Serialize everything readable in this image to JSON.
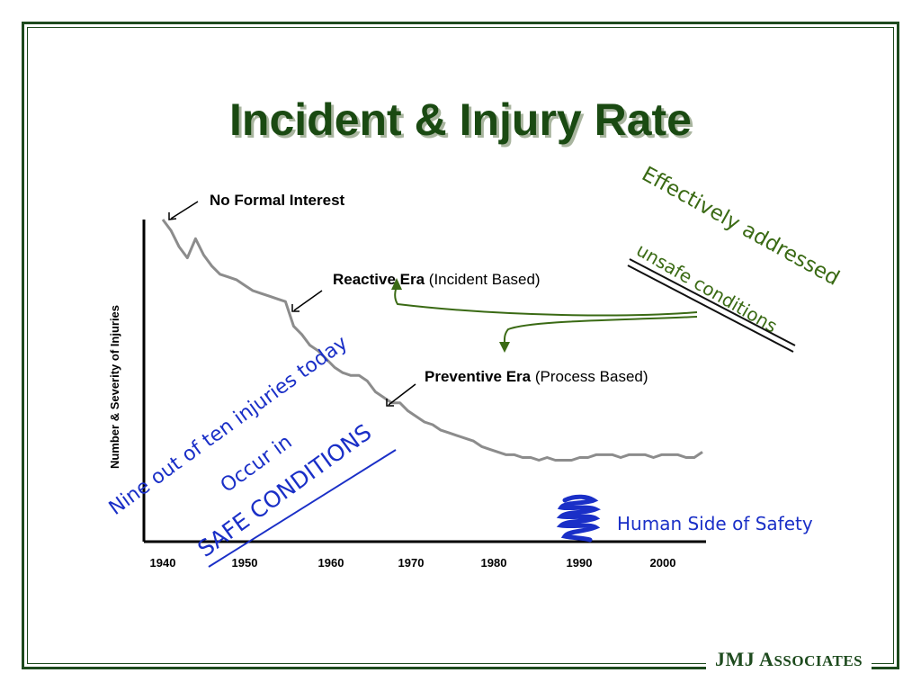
{
  "slide": {
    "title": "Incident & Injury Rate",
    "logo_main": "JMJ A",
    "logo_small": "SSOCIATES",
    "colors": {
      "title": "#1a4a12",
      "frame": "#1d4a1d",
      "curve": "#8c8c8c",
      "hand_blue": "#1a2fc7",
      "hand_green": "#3a6a14"
    }
  },
  "annotations": {
    "no_formal": "No Formal Interest",
    "reactive_bold": "Reactive Era",
    "reactive_rest": " (Incident Based)",
    "preventive_bold": "Preventive Era",
    "preventive_rest": " (Process Based)",
    "green_line1": "Effectively addressed",
    "green_line2": "unsafe conditions",
    "blue_line1": "Nine out of ten injuries today",
    "blue_line2": "Occur in",
    "blue_line3": "SAFE CONDITIONS",
    "human_side": "Human Side of Safety"
  },
  "chart_data": {
    "type": "line",
    "title": "",
    "xlabel": "",
    "ylabel": "Number & Severity of Injuries",
    "xticks": [
      "1940",
      "1950",
      "1960",
      "1970",
      "1980",
      "1990",
      "2000"
    ],
    "xlim": [
      1940,
      2006
    ],
    "ylim": [
      0,
      100
    ],
    "grid": false,
    "series": [
      {
        "x": [
          1940,
          1941,
          1942,
          1943,
          1944,
          1945,
          1946,
          1947,
          1948,
          1949,
          1950,
          1951,
          1952,
          1953,
          1954,
          1955,
          1956,
          1957,
          1958,
          1959,
          1960,
          1961,
          1962,
          1963,
          1964,
          1965,
          1966,
          1967,
          1968,
          1969,
          1970,
          1971,
          1972,
          1973,
          1974,
          1975,
          1976,
          1977,
          1978,
          1979,
          1980,
          1981,
          1982,
          1983,
          1984,
          1985,
          1986,
          1987,
          1988,
          1989,
          1990,
          1991,
          1992,
          1993,
          1994,
          1995,
          1996,
          1997,
          1998,
          1999,
          2000,
          2001,
          2002,
          2003,
          2004,
          2005,
          2006
        ],
        "values": [
          100,
          96,
          90,
          86,
          93,
          87,
          83,
          80,
          79,
          78,
          76,
          74,
          73,
          72,
          71,
          70,
          61,
          58,
          54,
          52,
          49,
          46,
          44,
          43,
          43,
          41,
          37,
          35,
          33,
          33,
          30,
          28,
          26,
          25,
          23,
          22,
          21,
          20,
          19,
          17,
          16,
          15,
          14,
          14,
          13,
          13,
          12,
          13,
          12,
          12,
          12,
          13,
          13,
          14,
          14,
          14,
          13,
          14,
          14,
          14,
          13,
          14,
          14,
          14,
          13,
          13,
          15
        ]
      }
    ]
  }
}
